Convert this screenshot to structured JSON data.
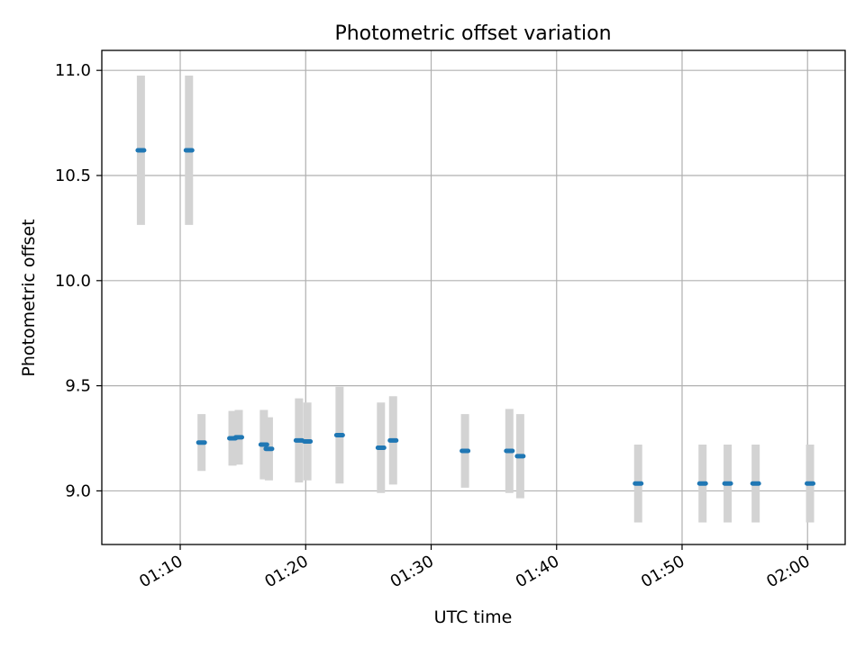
{
  "chart_data": {
    "type": "scatter",
    "title": "Photometric offset variation",
    "xlabel": "UTC time",
    "ylabel": "Photometric offset",
    "xlim": [
      "01:03:45",
      "02:03:00"
    ],
    "ylim": [
      8.745,
      11.095
    ],
    "xticks": [
      "01:10",
      "01:20",
      "01:30",
      "01:40",
      "01:50",
      "02:00"
    ],
    "yticks": [
      "9.0",
      "9.5",
      "10.0",
      "10.5",
      "11.0"
    ],
    "grid": true,
    "marker_color": "#1f77b4",
    "errorbar_color": "#d3d3d3",
    "series": [
      {
        "points": [
          {
            "x": "01:06:52",
            "y": 10.62,
            "err": 0.355
          },
          {
            "x": "01:10:42",
            "y": 10.62,
            "err": 0.355
          },
          {
            "x": "01:11:42",
            "y": 9.23,
            "err": 0.135
          },
          {
            "x": "01:14:10",
            "y": 9.25,
            "err": 0.13
          },
          {
            "x": "01:14:40",
            "y": 9.255,
            "err": 0.13
          },
          {
            "x": "01:16:40",
            "y": 9.22,
            "err": 0.165
          },
          {
            "x": "01:17:04",
            "y": 9.2,
            "err": 0.15
          },
          {
            "x": "01:19:28",
            "y": 9.24,
            "err": 0.2
          },
          {
            "x": "01:20:08",
            "y": 9.235,
            "err": 0.185
          },
          {
            "x": "01:22:42",
            "y": 9.265,
            "err": 0.23
          },
          {
            "x": "01:26:00",
            "y": 9.205,
            "err": 0.215
          },
          {
            "x": "01:26:58",
            "y": 9.24,
            "err": 0.21
          },
          {
            "x": "01:32:42",
            "y": 9.19,
            "err": 0.175
          },
          {
            "x": "01:36:14",
            "y": 9.19,
            "err": 0.2
          },
          {
            "x": "01:37:06",
            "y": 9.165,
            "err": 0.2
          },
          {
            "x": "01:46:30",
            "y": 9.035,
            "err": 0.185
          },
          {
            "x": "01:51:38",
            "y": 9.035,
            "err": 0.185
          },
          {
            "x": "01:53:38",
            "y": 9.035,
            "err": 0.185
          },
          {
            "x": "01:55:52",
            "y": 9.035,
            "err": 0.185
          },
          {
            "x": "02:00:12",
            "y": 9.035,
            "err": 0.185
          }
        ]
      }
    ]
  }
}
